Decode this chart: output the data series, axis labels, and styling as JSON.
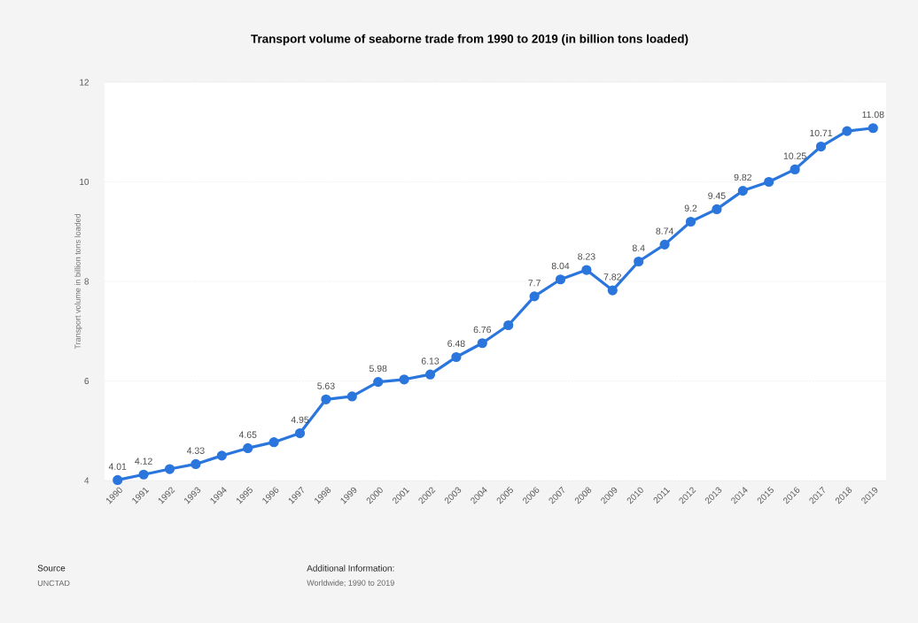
{
  "chart_data": {
    "type": "line",
    "title": "Transport volume of seaborne trade from 1990 to 2019 (in billion tons loaded)",
    "ylabel": "Transport volume in billion tons loaded",
    "categories": [
      "1990",
      "1991",
      "1992",
      "1993",
      "1994",
      "1995",
      "1996",
      "1997",
      "1998",
      "1999",
      "2000",
      "2001",
      "2002",
      "2003",
      "2004",
      "2005",
      "2006",
      "2007",
      "2008",
      "2009",
      "2010",
      "2011",
      "2012",
      "2013",
      "2014",
      "2015",
      "2016",
      "2017",
      "2018",
      "2019"
    ],
    "values": [
      4.01,
      4.12,
      4.23,
      4.33,
      4.5,
      4.65,
      4.77,
      4.95,
      5.63,
      5.69,
      5.98,
      6.03,
      6.13,
      6.48,
      6.76,
      7.12,
      7.7,
      8.04,
      8.23,
      7.82,
      8.4,
      8.74,
      9.2,
      9.45,
      9.82,
      10.0,
      10.25,
      10.71,
      11.02,
      11.08
    ],
    "value_labels": [
      "4.01",
      "4.12",
      null,
      "4.33",
      null,
      "4.65",
      null,
      "4.95",
      "5.63",
      null,
      "5.98",
      null,
      "6.13",
      "6.48",
      "6.76",
      null,
      "7.7",
      "8.04",
      "8.23",
      "7.82",
      "8.4",
      "8.74",
      "9.2",
      "9.45",
      "9.82",
      null,
      "10.25",
      "10.71",
      null,
      "11.08"
    ],
    "color": "#2a76dd",
    "marker": "circle",
    "grid": "y",
    "ylim": [
      4,
      12
    ],
    "yticks": [
      4,
      6,
      8,
      10,
      12
    ],
    "annotations": [
      "Source",
      "UNCTAD",
      "Additional Information:",
      "Worldwide; 1990 to 2019"
    ]
  }
}
